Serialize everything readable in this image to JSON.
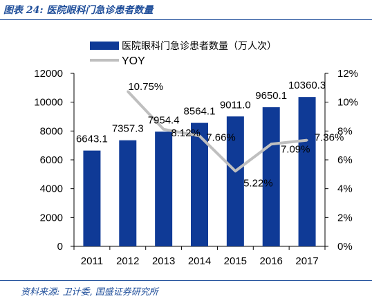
{
  "figure_title": "图表 24:  医院眼科门急诊患者数量",
  "source": "资料来源:  卫计委,  国盛证券研究所",
  "chart_data": {
    "type": "bar",
    "categories": [
      "2011",
      "2012",
      "2013",
      "2014",
      "2015",
      "2016",
      "2017"
    ],
    "series": [
      {
        "name": "医院眼科门急诊患者数量（万人次）",
        "type": "bar",
        "axis": "left",
        "color": "#0f3a96",
        "values": [
          6643.1,
          7357.3,
          7954.4,
          8564.1,
          9011.0,
          9650.1,
          10360.3
        ],
        "labels": [
          "6643.1",
          "7357.3",
          "7954.4",
          "8564.1",
          "9011.0",
          "9650.1",
          "10360.3"
        ]
      },
      {
        "name": "YOY",
        "type": "line",
        "axis": "right",
        "color": "#bfbfbf",
        "values": [
          null,
          10.75,
          8.12,
          7.66,
          5.22,
          7.09,
          7.36
        ],
        "labels": [
          "",
          "10.75%",
          "8.12%",
          "7.66%",
          "5.22%",
          "7.09%",
          "7.36%"
        ]
      }
    ],
    "y_left": {
      "min": 0,
      "max": 12000,
      "ticks": [
        "0",
        "2000",
        "4000",
        "6000",
        "8000",
        "10000",
        "12000"
      ]
    },
    "y_right": {
      "min": 0,
      "max": 12,
      "ticks": [
        "0%",
        "2%",
        "4%",
        "6%",
        "8%",
        "10%",
        "12%"
      ]
    },
    "legend_position": "top-left",
    "grid": false
  }
}
